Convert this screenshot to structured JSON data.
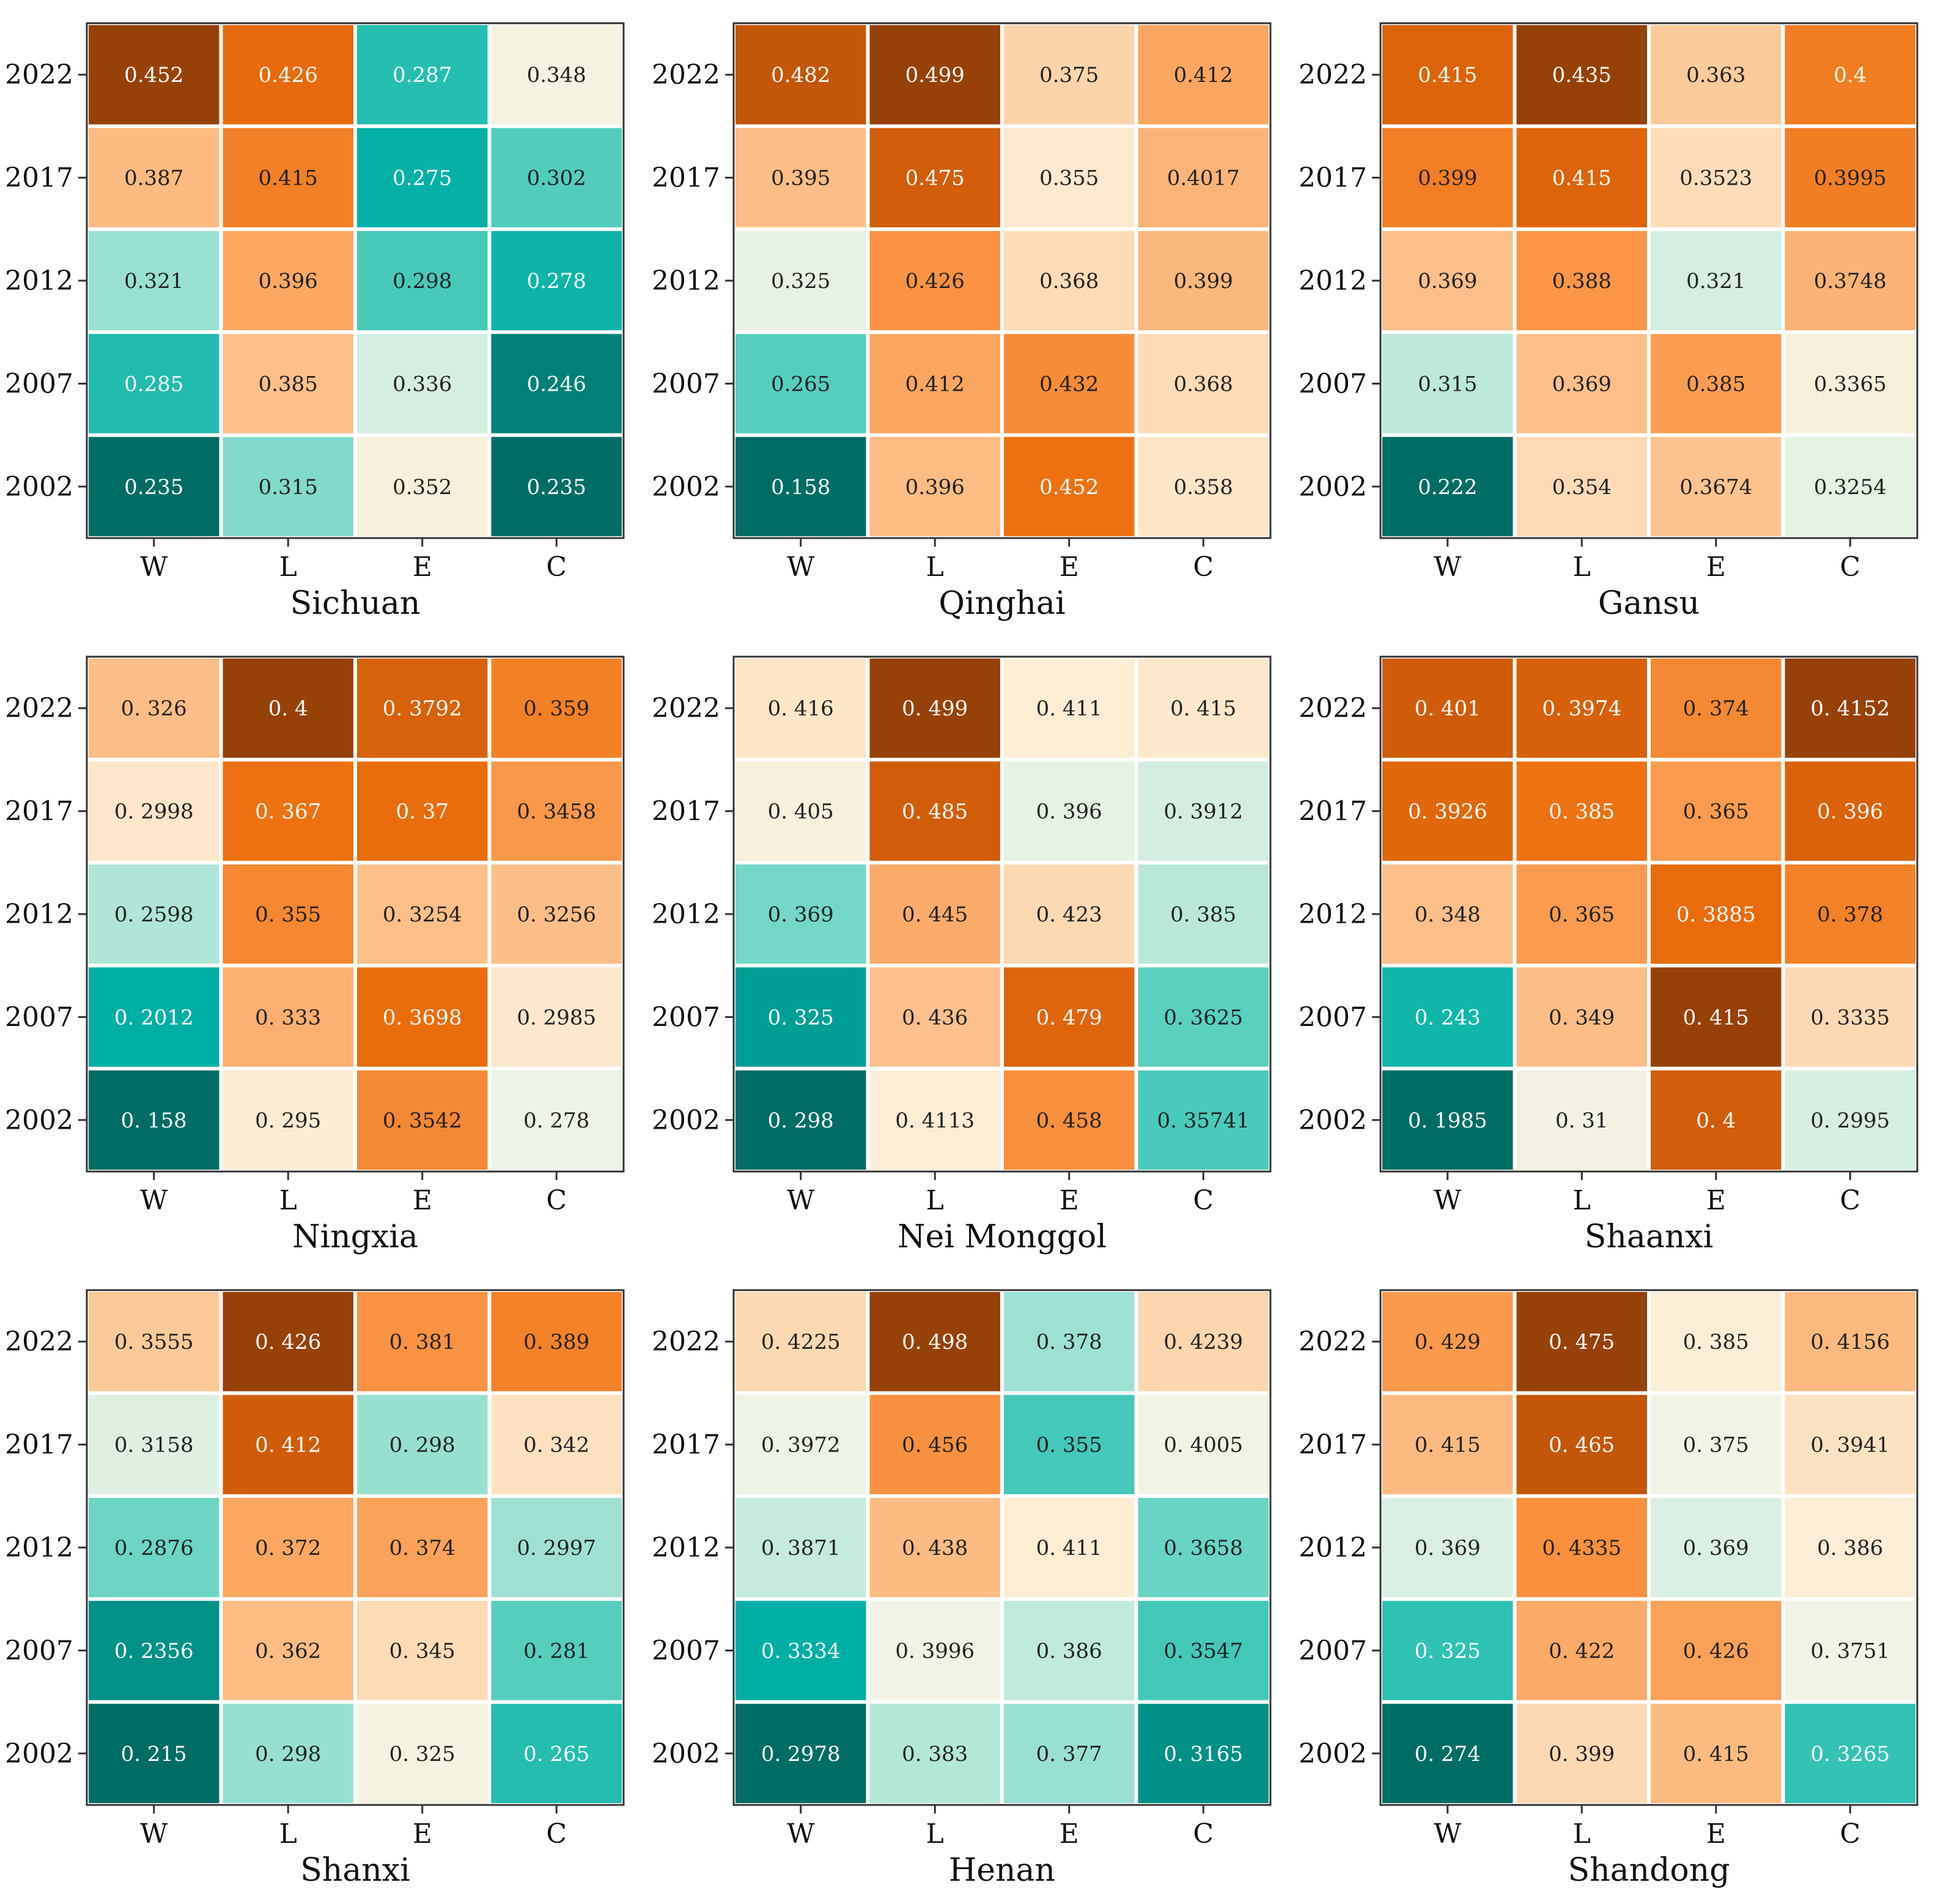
{
  "chart_data": [
    {
      "type": "heatmap",
      "title": "Sichuan",
      "x_categories": [
        "W",
        "L",
        "E",
        "C"
      ],
      "y_categories": [
        "2022",
        "2017",
        "2012",
        "2007",
        "2002"
      ],
      "values": [
        [
          "0.452",
          "0.426",
          "0.287",
          "0.348"
        ],
        [
          "0.387",
          "0.415",
          "0.275",
          "0.302"
        ],
        [
          "0.321",
          "0.396",
          "0.298",
          "0.278"
        ],
        [
          "0.285",
          "0.385",
          "0.336",
          "0.246"
        ],
        [
          "0.235",
          "0.315",
          "0.352",
          "0.235"
        ]
      ]
    },
    {
      "type": "heatmap",
      "title": "Qinghai",
      "x_categories": [
        "W",
        "L",
        "E",
        "C"
      ],
      "y_categories": [
        "2022",
        "2017",
        "2012",
        "2007",
        "2002"
      ],
      "values": [
        [
          "0.482",
          "0.499",
          "0.375",
          "0.412"
        ],
        [
          "0.395",
          "0.475",
          "0.355",
          "0.4017"
        ],
        [
          "0.325",
          "0.426",
          "0.368",
          "0.399"
        ],
        [
          "0.265",
          "0.412",
          "0.432",
          "0.368"
        ],
        [
          "0.158",
          "0.396",
          "0.452",
          "0.358"
        ]
      ]
    },
    {
      "type": "heatmap",
      "title": "Gansu",
      "x_categories": [
        "W",
        "L",
        "E",
        "C"
      ],
      "y_categories": [
        "2022",
        "2017",
        "2012",
        "2007",
        "2002"
      ],
      "values": [
        [
          "0.415",
          "0.435",
          "0.363",
          "0.4"
        ],
        [
          "0.399",
          "0.415",
          "0.3523",
          "0.3995"
        ],
        [
          "0.369",
          "0.388",
          "0.321",
          "0.3748"
        ],
        [
          "0.315",
          "0.369",
          "0.385",
          "0.3365"
        ],
        [
          "0.222",
          "0.354",
          "0.3674",
          "0.3254"
        ]
      ]
    },
    {
      "type": "heatmap",
      "title": "Ningxia",
      "x_categories": [
        "W",
        "L",
        "E",
        "C"
      ],
      "y_categories": [
        "2022",
        "2017",
        "2012",
        "2007",
        "2002"
      ],
      "values": [
        [
          "0. 326",
          "0. 4",
          "0. 3792",
          "0. 359"
        ],
        [
          "0. 2998",
          "0. 367",
          "0. 37",
          "0. 3458"
        ],
        [
          "0. 2598",
          "0. 355",
          "0. 3254",
          "0. 3256"
        ],
        [
          "0. 2012",
          "0. 333",
          "0. 3698",
          "0. 2985"
        ],
        [
          "0. 158",
          "0. 295",
          "0. 3542",
          "0. 278"
        ]
      ]
    },
    {
      "type": "heatmap",
      "title": "Nei Monggol",
      "x_categories": [
        "W",
        "L",
        "E",
        "C"
      ],
      "y_categories": [
        "2022",
        "2017",
        "2012",
        "2007",
        "2002"
      ],
      "values": [
        [
          "0. 416",
          "0. 499",
          "0. 411",
          "0. 415"
        ],
        [
          "0. 405",
          "0. 485",
          "0. 396",
          "0. 3912"
        ],
        [
          "0. 369",
          "0. 445",
          "0. 423",
          "0. 385"
        ],
        [
          "0. 325",
          "0. 436",
          "0. 479",
          "0. 3625"
        ],
        [
          "0. 298",
          "0. 4113",
          "0. 458",
          "0. 35741"
        ]
      ]
    },
    {
      "type": "heatmap",
      "title": "Shaanxi",
      "x_categories": [
        "W",
        "L",
        "E",
        "C"
      ],
      "y_categories": [
        "2022",
        "2017",
        "2012",
        "2007",
        "2002"
      ],
      "values": [
        [
          "0. 401",
          "0. 3974",
          "0. 374",
          "0. 4152"
        ],
        [
          "0. 3926",
          "0. 385",
          "0. 365",
          "0. 396"
        ],
        [
          "0. 348",
          "0. 365",
          "0. 3885",
          "0. 378"
        ],
        [
          "0. 243",
          "0. 349",
          "0. 415",
          "0. 3335"
        ],
        [
          "0. 1985",
          "0. 31",
          "0. 4",
          "0. 2995"
        ]
      ]
    },
    {
      "type": "heatmap",
      "title": "Shanxi",
      "x_categories": [
        "W",
        "L",
        "E",
        "C"
      ],
      "y_categories": [
        "2022",
        "2017",
        "2012",
        "2007",
        "2002"
      ],
      "values": [
        [
          "0. 3555",
          "0. 426",
          "0. 381",
          "0. 389"
        ],
        [
          "0. 3158",
          "0. 412",
          "0. 298",
          "0. 342"
        ],
        [
          "0. 2876",
          "0. 372",
          "0. 374",
          "0. 2997"
        ],
        [
          "0. 2356",
          "0. 362",
          "0. 345",
          "0. 281"
        ],
        [
          "0. 215",
          "0. 298",
          "0. 325",
          "0. 265"
        ]
      ]
    },
    {
      "type": "heatmap",
      "title": "Henan",
      "x_categories": [
        "W",
        "L",
        "E",
        "C"
      ],
      "y_categories": [
        "2022",
        "2017",
        "2012",
        "2007",
        "2002"
      ],
      "values": [
        [
          "0. 4225",
          "0. 498",
          "0. 378",
          "0. 4239"
        ],
        [
          "0. 3972",
          "0. 456",
          "0. 355",
          "0. 4005"
        ],
        [
          "0. 3871",
          "0. 438",
          "0. 411",
          "0. 3658"
        ],
        [
          "0. 3334",
          "0. 3996",
          "0. 386",
          "0. 3547"
        ],
        [
          "0. 2978",
          "0. 383",
          "0. 377",
          "0. 3165"
        ]
      ]
    },
    {
      "type": "heatmap",
      "title": "Shandong",
      "x_categories": [
        "W",
        "L",
        "E",
        "C"
      ],
      "y_categories": [
        "2022",
        "2017",
        "2012",
        "2007",
        "2002"
      ],
      "values": [
        [
          "0. 429",
          "0. 475",
          "0. 385",
          "0. 4156"
        ],
        [
          "0. 415",
          "0. 465",
          "0. 375",
          "0. 3941"
        ],
        [
          "0. 369",
          "0. 4335",
          "0. 369",
          "0. 386"
        ],
        [
          "0. 325",
          "0. 422",
          "0. 426",
          "0. 3751"
        ],
        [
          "0. 274",
          "0. 399",
          "0. 415",
          "0. 3265"
        ]
      ]
    }
  ]
}
